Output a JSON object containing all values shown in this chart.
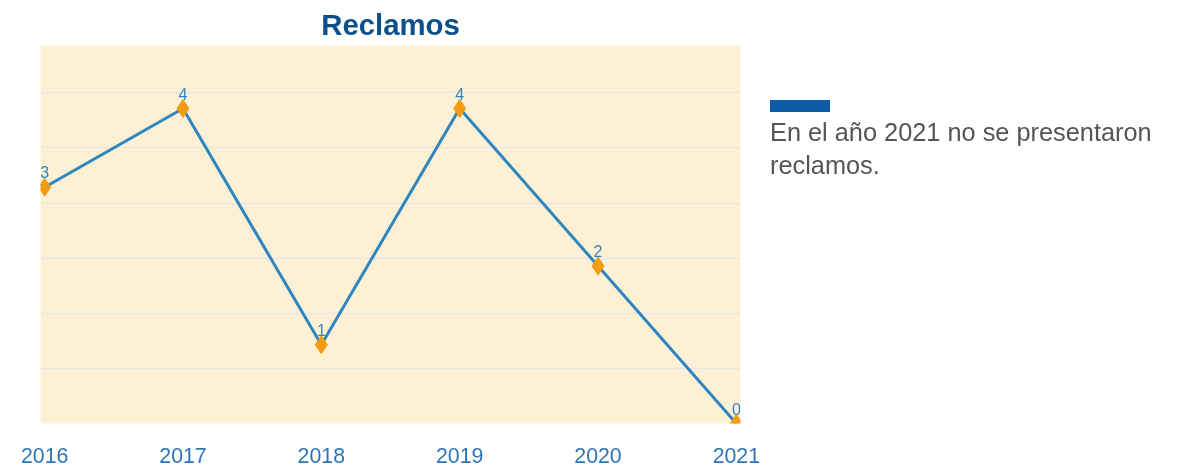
{
  "chart_data": {
    "type": "line",
    "title": "Reclamos",
    "categories": [
      "2016",
      "2017",
      "2018",
      "2019",
      "2020",
      "2021"
    ],
    "series": [
      {
        "color": "#2e86c1",
        "values": [
          3,
          4,
          1,
          4,
          2,
          0
        ]
      }
    ],
    "marker": "diamond",
    "data_labels": true,
    "grid": "y",
    "tick_labels": "x",
    "ylim": [
      0,
      4.8
    ],
    "yticks": [
      {
        "value": 0,
        "label": null
      },
      {
        "value": 0.7,
        "label": null
      },
      {
        "value": 1.4,
        "label": null
      },
      {
        "value": 2.1,
        "label": null
      },
      {
        "value": 2.8,
        "label": null
      },
      {
        "value": 3.5,
        "label": null
      },
      {
        "value": 4.2,
        "label": null
      }
    ],
    "annotations": [
      "En el año 2021 no se presentaron reclamos."
    ]
  }
}
